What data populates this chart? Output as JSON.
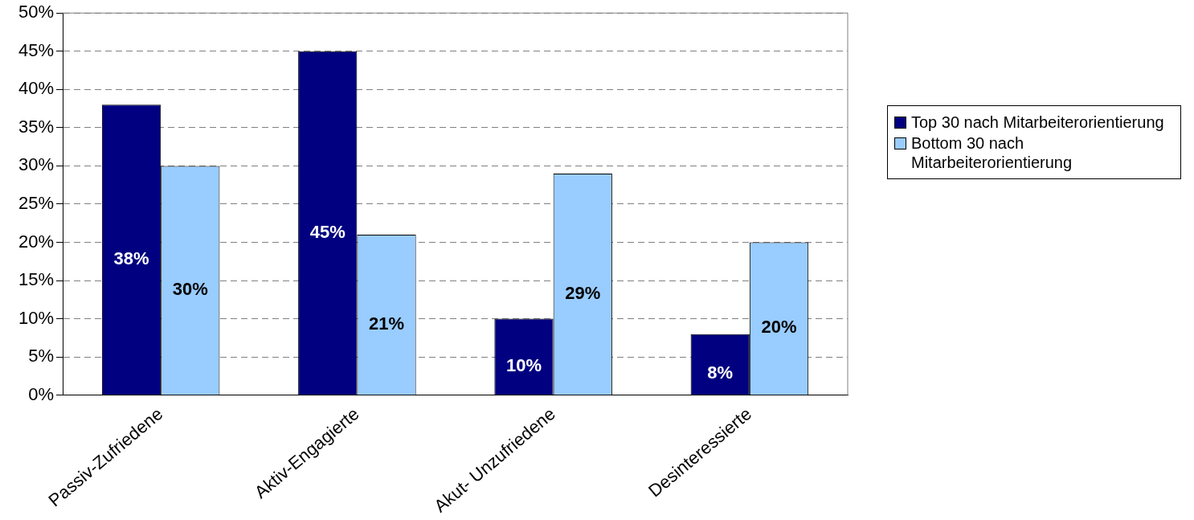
{
  "chart_data": {
    "type": "bar",
    "categories": [
      "Passiv-Zufriedene",
      "Aktiv-Engagierte",
      "Akut- Unzufriedene",
      "Desinteressierte"
    ],
    "series": [
      {
        "name": "Top 30 nach Mitarbeiterorientierung",
        "color": "#000080",
        "values": [
          38,
          45,
          10,
          8
        ],
        "value_labels": [
          "38%",
          "45%",
          "10%",
          "8%"
        ]
      },
      {
        "name": "Bottom 30 nach Mitarbeiterorientierung",
        "color": "#99ccff",
        "values": [
          30,
          21,
          29,
          20
        ],
        "value_labels": [
          "30%",
          "21%",
          "29%",
          "20%"
        ]
      }
    ],
    "ylim": [
      0,
      50
    ],
    "yticks": [
      {
        "value": 0,
        "label": "0%"
      },
      {
        "value": 5,
        "label": "5%"
      },
      {
        "value": 10,
        "label": "10%"
      },
      {
        "value": 15,
        "label": "15%"
      },
      {
        "value": 20,
        "label": "20%"
      },
      {
        "value": 25,
        "label": "25%"
      },
      {
        "value": 30,
        "label": "30%"
      },
      {
        "value": 35,
        "label": "35%"
      },
      {
        "value": 40,
        "label": "40%"
      },
      {
        "value": 45,
        "label": "45%"
      },
      {
        "value": 50,
        "label": "50%"
      }
    ],
    "grid": "y",
    "legend": "right"
  }
}
